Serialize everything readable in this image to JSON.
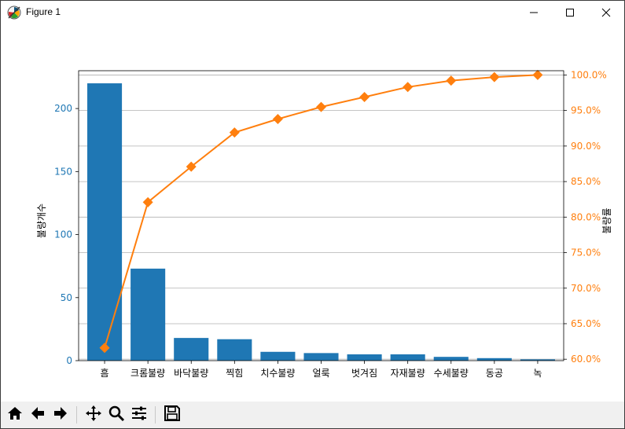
{
  "window": {
    "title": "Figure 1",
    "icon": "matplotlib-icon",
    "controls": [
      "minimize-icon",
      "maximize-icon",
      "close-icon"
    ]
  },
  "toolbar": {
    "buttons": [
      "home-icon",
      "back-arrow-icon",
      "forward-arrow-icon",
      "pan-icon",
      "zoom-icon",
      "configure-subplots-icon",
      "save-icon"
    ]
  },
  "chart_data": {
    "type": "bar",
    "categories": [
      "흠",
      "크롬불량",
      "바닥불량",
      "찍힘",
      "치수불량",
      "얼룩",
      "벗겨짐",
      "자재불량",
      "수세불량",
      "동공",
      "녹"
    ],
    "series": [
      {
        "axis": "left",
        "type": "bar",
        "values": [
          220,
          73,
          18,
          17,
          7,
          6,
          5,
          5,
          3,
          2,
          1
        ]
      },
      {
        "axis": "right",
        "type": "line",
        "marker": "diamond",
        "values": [
          61.6,
          82.1,
          87.1,
          91.9,
          93.8,
          95.5,
          96.9,
          98.3,
          99.2,
          99.7,
          100.0
        ]
      }
    ],
    "ylabel": "불량개수",
    "y2label": "불량률",
    "ylim": [
      0,
      230
    ],
    "y2lim": [
      59.8,
      100.6
    ],
    "yticks": [
      0,
      50,
      100,
      150,
      200
    ],
    "y2ticks": [
      60,
      65,
      70,
      75,
      80,
      85,
      90,
      95,
      100
    ],
    "y2tick_labels": [
      "60.0%",
      "65.0%",
      "70.0%",
      "75.0%",
      "80.0%",
      "85.0%",
      "90.0%",
      "95.0%",
      "100.0%"
    ],
    "grid": "horizontal",
    "colors": {
      "bar": "#1f77b4",
      "line": "#ff7f0e",
      "left_axis": "#1f77b4",
      "right_axis": "#ff7f0e"
    }
  }
}
